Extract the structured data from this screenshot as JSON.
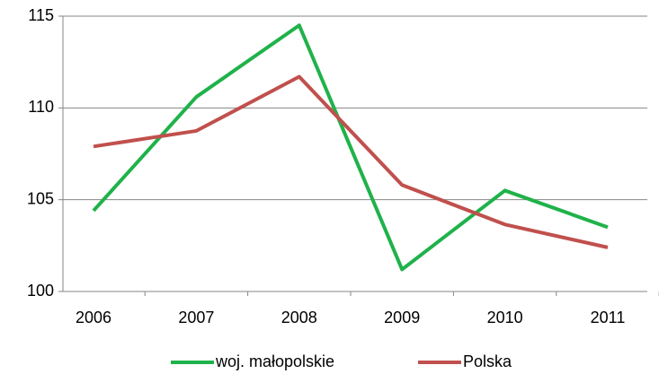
{
  "chart_data": {
    "type": "line",
    "categories": [
      "2006",
      "2007",
      "2008",
      "2009",
      "2010",
      "2011"
    ],
    "series": [
      {
        "name": "woj. małopolskie",
        "color": "#1fb24a",
        "values": [
          104.4,
          110.6,
          114.5,
          101.2,
          105.5,
          103.5
        ]
      },
      {
        "name": "Polska",
        "color": "#c0504d",
        "values": [
          107.9,
          108.75,
          111.7,
          105.8,
          103.65,
          102.4
        ]
      }
    ],
    "ylim": [
      100,
      115
    ],
    "yticks": [
      100,
      105,
      110,
      115
    ],
    "grid": true,
    "legend": "bottom"
  }
}
